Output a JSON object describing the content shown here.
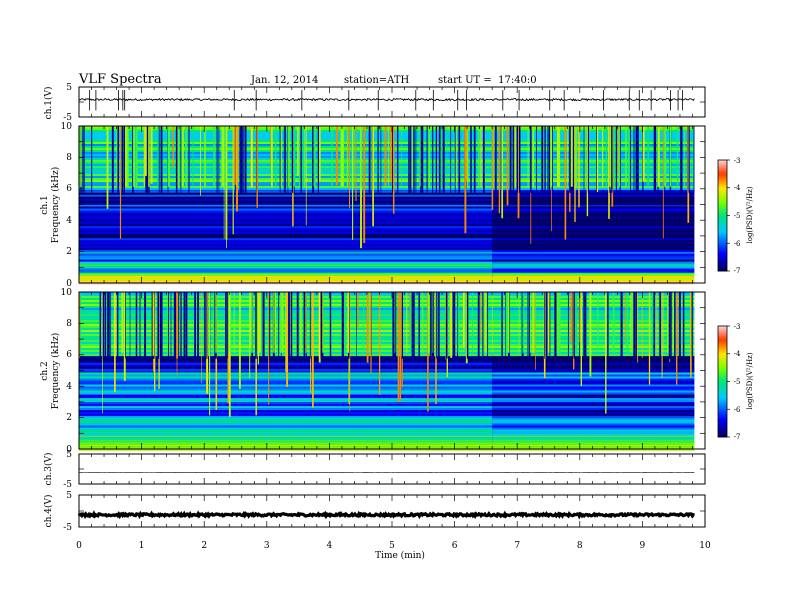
{
  "header": {
    "title": "VLF Spectra",
    "date": "Jan. 12, 2014",
    "station": "station=ATH",
    "start": "start UT =  17:40:0"
  },
  "chart_data": [
    {
      "id": "ch1_waveform",
      "type": "line",
      "ylabel": "ch.1(V)",
      "ylim": [
        -5,
        5
      ],
      "y_ticks": [
        "5",
        "-5"
      ],
      "baseline": 0.8,
      "noise": 0.35,
      "spikes": [
        0.17,
        0.27,
        0.63,
        0.7,
        0.73,
        2.48,
        2.83,
        3.56,
        4.31,
        4.78,
        5.38,
        5.66,
        6.05,
        6.19,
        6.77,
        7.03,
        7.52,
        7.75,
        8.38,
        8.79,
        8.95,
        9.14,
        9.45,
        9.57,
        9.64
      ]
    },
    {
      "id": "ch1_spectrogram",
      "type": "heatmap",
      "ylabel": "ch.1",
      "ylabel2": "Frequency (kHz)",
      "xlim": [
        0,
        9.83
      ],
      "ylim": [
        0,
        10
      ],
      "y_ticks": [
        "0",
        "2",
        "4",
        "6",
        "8",
        "10"
      ],
      "colorbar": {
        "min": -7,
        "max": -3,
        "ticks": [
          "-3",
          "-4",
          "-5",
          "-6",
          "-7"
        ],
        "label": "log(PSD)(V²/Hz)"
      },
      "background_levels": [
        {
          "from": 0.0,
          "to": 0.3,
          "value": -3.4
        },
        {
          "from": 0.3,
          "to": 0.7,
          "value": -4.6
        },
        {
          "from": 0.7,
          "to": 1.3,
          "value": -5.3
        },
        {
          "from": 1.3,
          "to": 2.0,
          "value": -5.8
        },
        {
          "from": 2.0,
          "to": 4.0,
          "value": -6.5
        },
        {
          "from": 4.0,
          "to": 5.0,
          "value": -6.2
        },
        {
          "from": 5.0,
          "to": 6.0,
          "value": -6.7
        },
        {
          "from": 6.0,
          "to": 10.0,
          "value": -5.2
        }
      ],
      "hiss_band_lower_khz": 6.0,
      "transition_time_min": 6.6
    },
    {
      "id": "ch2_spectrogram",
      "type": "heatmap",
      "ylabel": "ch.2",
      "ylabel2": "Frequency (kHz)",
      "xlim": [
        0,
        9.83
      ],
      "ylim": [
        0,
        10
      ],
      "y_ticks": [
        "0",
        "2",
        "4",
        "6",
        "8",
        "10"
      ],
      "colorbar": {
        "min": -7,
        "max": -3,
        "ticks": [
          "-3",
          "-4",
          "-5",
          "-6",
          "-7"
        ],
        "label": "log(PSD)(V²/Hz)"
      },
      "background_levels": [
        {
          "from": 0.0,
          "to": 0.4,
          "value": -4.6
        },
        {
          "from": 0.4,
          "to": 1.0,
          "value": -5.0
        },
        {
          "from": 1.0,
          "to": 2.0,
          "value": -5.4
        },
        {
          "from": 2.0,
          "to": 3.5,
          "value": -5.9
        },
        {
          "from": 3.5,
          "to": 5.0,
          "value": -5.7
        },
        {
          "from": 5.0,
          "to": 6.0,
          "value": -6.6
        },
        {
          "from": 6.0,
          "to": 10.0,
          "value": -5.1
        }
      ],
      "hiss_band_lower_khz": 6.0,
      "transition_time_min": 6.6
    },
    {
      "id": "ch3_waveform",
      "type": "line",
      "ylabel": "ch.3(V)",
      "ylim": [
        -5,
        5
      ],
      "y_ticks": [
        "5",
        "-5"
      ],
      "baseline": -1.2,
      "noise": 0.05,
      "spikes": []
    },
    {
      "id": "ch4_waveform",
      "type": "line",
      "ylabel": "ch.4(V)",
      "ylim": [
        -5,
        5
      ],
      "y_ticks": [
        "5",
        "-5"
      ],
      "baseline": -1.2,
      "noise": 0.35,
      "spikes": []
    }
  ],
  "x_axis": {
    "label": "Time (min)",
    "xlim": [
      0,
      10
    ],
    "ticks": [
      "0",
      "1",
      "2",
      "3",
      "4",
      "5",
      "6",
      "7",
      "8",
      "9",
      "10"
    ],
    "data_end": 9.83
  }
}
